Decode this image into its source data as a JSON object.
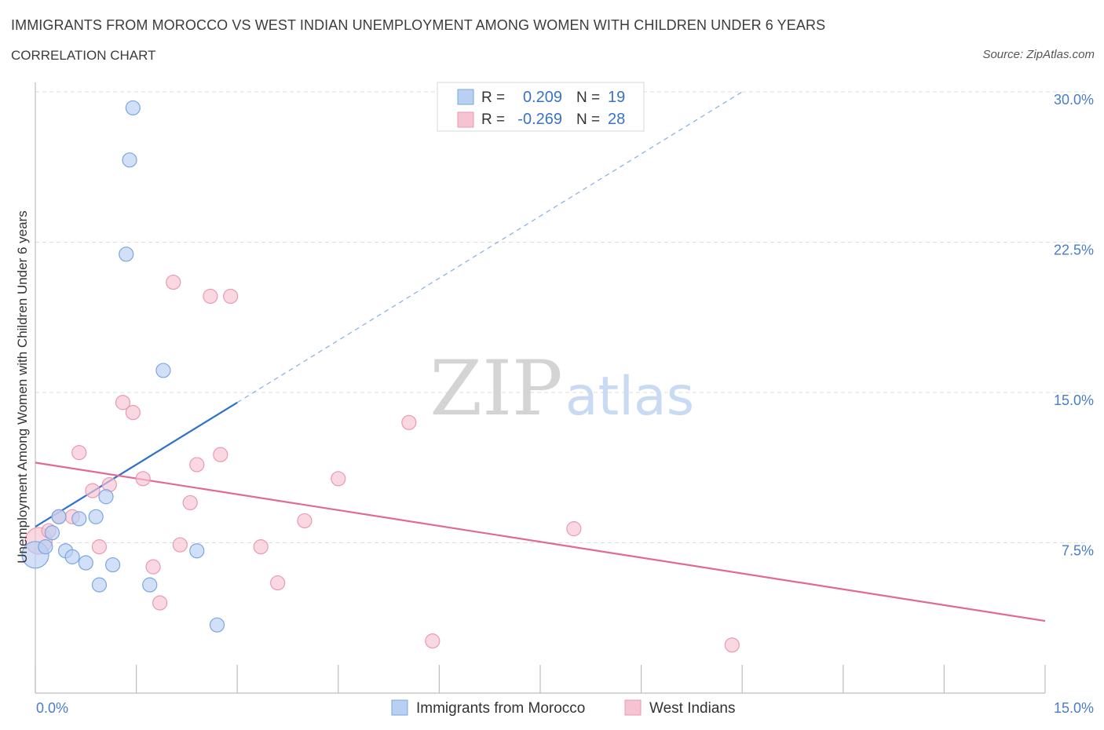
{
  "header": {
    "title": "IMMIGRANTS FROM MOROCCO VS WEST INDIAN UNEMPLOYMENT AMONG WOMEN WITH CHILDREN UNDER 6 YEARS",
    "subtitle": "CORRELATION CHART",
    "source": "Source: ZipAtlas.com"
  },
  "watermark": {
    "zip": "ZIP",
    "atlas": "atlas"
  },
  "legend": {
    "r_label": "R =",
    "n_label": "N =",
    "rows": [
      {
        "r": "0.209",
        "n": "19"
      },
      {
        "r": "-0.269",
        "n": "28"
      }
    ]
  },
  "colors": {
    "morocco_fill": "#b9d0f2",
    "morocco_stroke": "#7aa6e3",
    "morocco_line": "#2f72c8",
    "westindian_fill": "#f6c3d3",
    "westindian_stroke": "#eb98b4",
    "westindian_line": "#e06a97",
    "axis_text": "#4a7cc9",
    "grid": "#dddddd"
  },
  "chart_data": {
    "type": "scatter",
    "title": "IMMIGRANTS FROM MOROCCO VS WEST INDIAN UNEMPLOYMENT AMONG WOMEN WITH CHILDREN UNDER 6 YEARS",
    "xlabel": "",
    "ylabel": "Unemployment Among Women with Children Under 6 years",
    "xlim": [
      0,
      15
    ],
    "ylim": [
      0,
      30
    ],
    "x_tick_labels": [
      "0.0%",
      "15.0%"
    ],
    "y_ticks": [
      7.5,
      15.0,
      22.5,
      30.0
    ],
    "y_tick_labels": [
      "7.5%",
      "15.0%",
      "22.5%",
      "30.0%"
    ],
    "grid": true,
    "legend_position": "top-center",
    "series": [
      {
        "name": "Immigrants from Morocco",
        "r": 0.209,
        "n": 19,
        "trend": {
          "x": [
            0,
            3.0
          ],
          "y": [
            8.3,
            14.5
          ],
          "dashed_extension_to": [
            10.5,
            30.0
          ]
        },
        "points": [
          {
            "x": 0.0,
            "y": 6.9,
            "big": true
          },
          {
            "x": 0.15,
            "y": 7.3
          },
          {
            "x": 0.25,
            "y": 8.0
          },
          {
            "x": 0.35,
            "y": 8.8
          },
          {
            "x": 0.45,
            "y": 7.1
          },
          {
            "x": 0.55,
            "y": 6.8
          },
          {
            "x": 0.65,
            "y": 8.7
          },
          {
            "x": 0.75,
            "y": 6.5
          },
          {
            "x": 0.9,
            "y": 8.8
          },
          {
            "x": 0.95,
            "y": 5.4
          },
          {
            "x": 1.05,
            "y": 9.8
          },
          {
            "x": 1.15,
            "y": 6.4
          },
          {
            "x": 1.45,
            "y": 29.2
          },
          {
            "x": 1.4,
            "y": 26.6
          },
          {
            "x": 1.35,
            "y": 21.9
          },
          {
            "x": 1.7,
            "y": 5.4
          },
          {
            "x": 1.9,
            "y": 16.1
          },
          {
            "x": 2.4,
            "y": 7.1
          },
          {
            "x": 2.7,
            "y": 3.4
          }
        ]
      },
      {
        "name": "West Indians",
        "r": -0.269,
        "n": 28,
        "trend": {
          "x": [
            0,
            15
          ],
          "y": [
            11.5,
            3.6
          ]
        },
        "points": [
          {
            "x": 0.05,
            "y": 7.6,
            "big": true
          },
          {
            "x": 0.2,
            "y": 8.1
          },
          {
            "x": 0.35,
            "y": 8.8
          },
          {
            "x": 0.55,
            "y": 8.8
          },
          {
            "x": 0.65,
            "y": 12.0
          },
          {
            "x": 0.85,
            "y": 10.1
          },
          {
            "x": 0.95,
            "y": 7.3
          },
          {
            "x": 1.1,
            "y": 10.4
          },
          {
            "x": 1.3,
            "y": 14.5
          },
          {
            "x": 1.45,
            "y": 14.0
          },
          {
            "x": 1.6,
            "y": 10.7
          },
          {
            "x": 1.75,
            "y": 6.3
          },
          {
            "x": 1.85,
            "y": 4.5
          },
          {
            "x": 2.05,
            "y": 20.5
          },
          {
            "x": 2.15,
            "y": 7.4
          },
          {
            "x": 2.3,
            "y": 9.5
          },
          {
            "x": 2.4,
            "y": 11.4
          },
          {
            "x": 2.6,
            "y": 19.8
          },
          {
            "x": 2.75,
            "y": 11.9
          },
          {
            "x": 2.9,
            "y": 19.8
          },
          {
            "x": 3.35,
            "y": 7.3
          },
          {
            "x": 3.6,
            "y": 5.5
          },
          {
            "x": 4.0,
            "y": 8.6
          },
          {
            "x": 4.5,
            "y": 10.7
          },
          {
            "x": 5.55,
            "y": 13.5
          },
          {
            "x": 5.9,
            "y": 2.6
          },
          {
            "x": 8.0,
            "y": 8.2
          },
          {
            "x": 10.35,
            "y": 2.4
          }
        ]
      }
    ]
  }
}
